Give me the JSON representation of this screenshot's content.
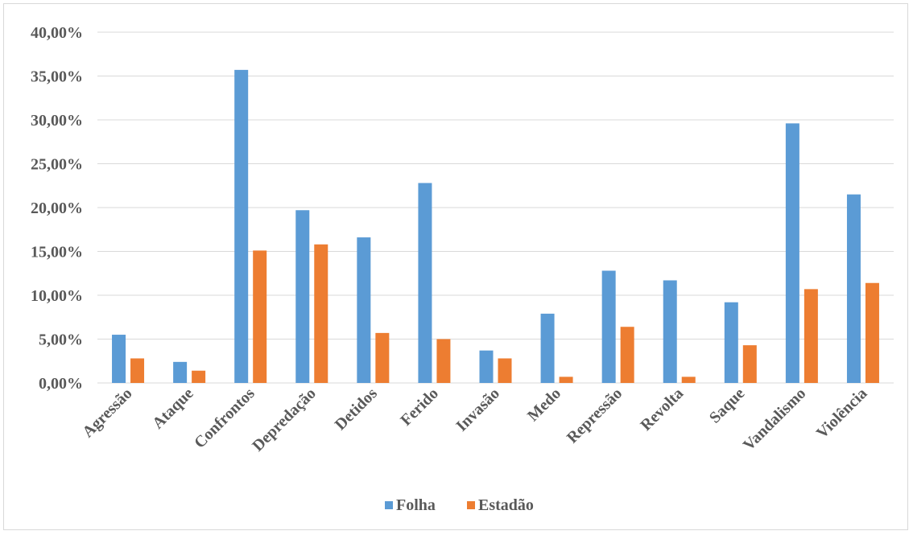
{
  "chart_data": {
    "type": "bar",
    "title": "",
    "xlabel": "",
    "ylabel": "",
    "ylim": [
      0,
      40
    ],
    "y_ticks": [
      "0,00%",
      "5,00%",
      "10,00%",
      "15,00%",
      "20,00%",
      "25,00%",
      "30,00%",
      "35,00%",
      "40,00%"
    ],
    "grid": true,
    "legend_position": "bottom",
    "categories": [
      "Agressão",
      "Ataque",
      "Confrontos",
      "Depredação",
      "Detidos",
      "Ferido",
      "Invasão",
      "Medo",
      "Repressão",
      "Revolta",
      "Saque",
      "Vandalismo",
      "Violência"
    ],
    "series": [
      {
        "name": "Folha",
        "color": "#5b9bd5",
        "values": [
          5.5,
          2.4,
          35.7,
          19.7,
          16.6,
          22.8,
          3.7,
          7.9,
          12.8,
          11.7,
          9.2,
          29.6,
          21.5
        ]
      },
      {
        "name": "Estadão",
        "color": "#ed7d31",
        "values": [
          2.8,
          1.4,
          15.1,
          15.8,
          5.7,
          5.0,
          2.8,
          0.7,
          6.4,
          0.7,
          4.3,
          10.7,
          11.4
        ]
      }
    ]
  }
}
